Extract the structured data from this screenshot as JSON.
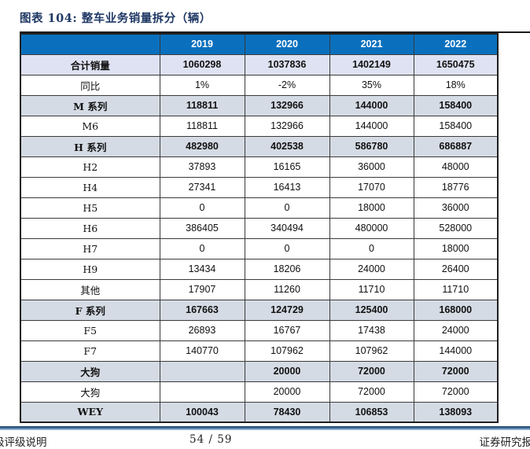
{
  "title": "图表 104:  整车业务销量拆分（辆）",
  "table": {
    "columns": [
      "",
      "2019",
      "2020",
      "2021",
      "2022"
    ],
    "rows": [
      {
        "label": "合计销量",
        "values": [
          "1060298",
          "1037836",
          "1402149",
          "1650475"
        ],
        "style": "total"
      },
      {
        "label": "同比",
        "values": [
          "1%",
          "-2%",
          "35%",
          "18%"
        ],
        "style": "plain"
      },
      {
        "label": "M 系列",
        "values": [
          "118811",
          "132966",
          "144000",
          "158400"
        ],
        "style": "section"
      },
      {
        "label": "M6",
        "values": [
          "118811",
          "132966",
          "144000",
          "158400"
        ],
        "style": "plain"
      },
      {
        "label": "H 系列",
        "values": [
          "482980",
          "402538",
          "586780",
          "686887"
        ],
        "style": "section"
      },
      {
        "label": "H2",
        "values": [
          "37893",
          "16165",
          "36000",
          "48000"
        ],
        "style": "plain"
      },
      {
        "label": "H4",
        "values": [
          "27341",
          "16413",
          "17070",
          "18776"
        ],
        "style": "plain"
      },
      {
        "label": "H5",
        "values": [
          "0",
          "0",
          "18000",
          "36000"
        ],
        "style": "plain"
      },
      {
        "label": "H6",
        "values": [
          "386405",
          "340494",
          "480000",
          "528000"
        ],
        "style": "plain"
      },
      {
        "label": "H7",
        "values": [
          "0",
          "0",
          "0",
          "18000"
        ],
        "style": "plain"
      },
      {
        "label": "H9",
        "values": [
          "13434",
          "18206",
          "24000",
          "26400"
        ],
        "style": "plain"
      },
      {
        "label": "其他",
        "values": [
          "17907",
          "11260",
          "11710",
          "11710"
        ],
        "style": "plain"
      },
      {
        "label": "F 系列",
        "values": [
          "167663",
          "124729",
          "125400",
          "168000"
        ],
        "style": "section"
      },
      {
        "label": "F5",
        "values": [
          "26893",
          "16767",
          "17438",
          "24000"
        ],
        "style": "plain"
      },
      {
        "label": "F7",
        "values": [
          "140770",
          "107962",
          "107962",
          "144000"
        ],
        "style": "plain"
      },
      {
        "label": "大狗",
        "values": [
          "",
          "20000",
          "72000",
          "72000"
        ],
        "style": "section"
      },
      {
        "label": "大狗",
        "values": [
          "",
          "20000",
          "72000",
          "72000"
        ],
        "style": "plain"
      },
      {
        "label": "WEY",
        "values": [
          "100043",
          "78430",
          "106853",
          "138093"
        ],
        "style": "section"
      }
    ]
  },
  "footer": {
    "left": "级评级说明",
    "page": "54 / 59",
    "right": "证券研究报"
  },
  "colors": {
    "header_bg": "#0A70BE",
    "total_row_bg": "#DEE2F2",
    "section_row_bg": "#D5DBE4",
    "title_color": "#1F3864",
    "border": "#3a3a3a"
  }
}
